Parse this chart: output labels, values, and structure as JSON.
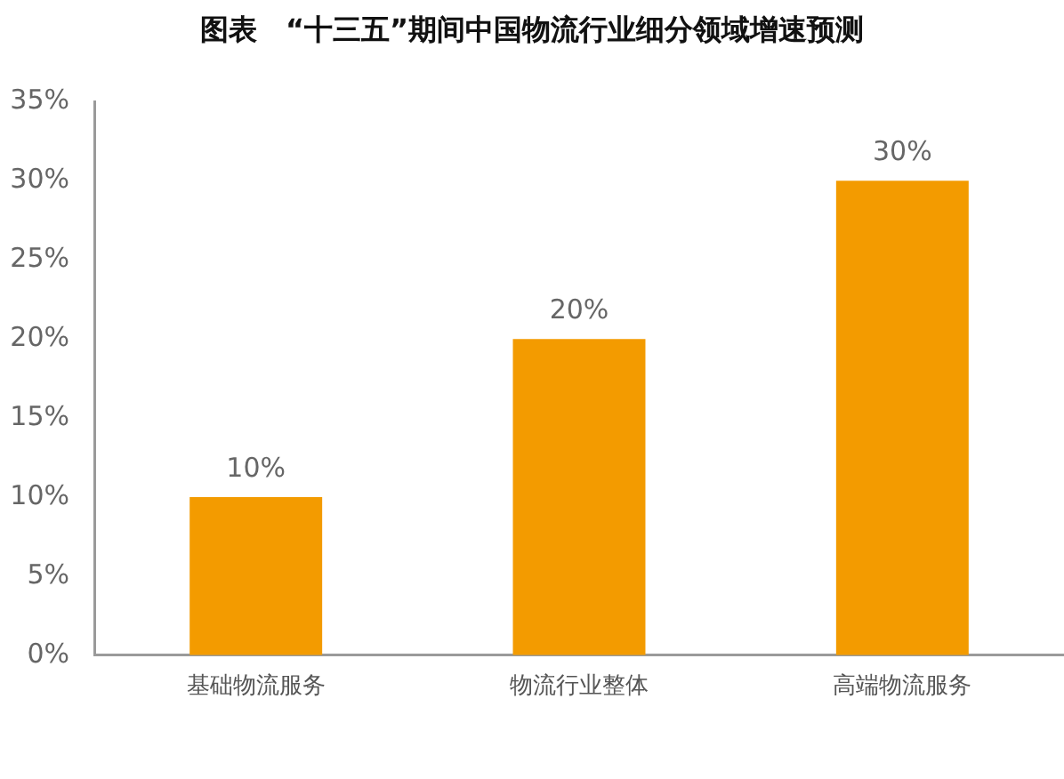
{
  "chart_data": {
    "type": "bar",
    "title": "图表　“十三五”期间中国物流行业细分领域增速预测",
    "categories": [
      "基础物流服务",
      "物流行业整体",
      "高端物流服务"
    ],
    "values": [
      10,
      20,
      30
    ],
    "value_labels": [
      "10%",
      "20%",
      "30%"
    ],
    "color": "#f39b00",
    "ylim": [
      0,
      35
    ],
    "yticks": [
      {
        "value": 0,
        "label": "0%"
      },
      {
        "value": 5,
        "label": "5%"
      },
      {
        "value": 10,
        "label": "10%"
      },
      {
        "value": 15,
        "label": "15%"
      },
      {
        "value": 20,
        "label": "20%"
      },
      {
        "value": 25,
        "label": "25%"
      },
      {
        "value": 30,
        "label": "30%"
      },
      {
        "value": 35,
        "label": "35%"
      }
    ],
    "grid": false,
    "legend": false
  }
}
